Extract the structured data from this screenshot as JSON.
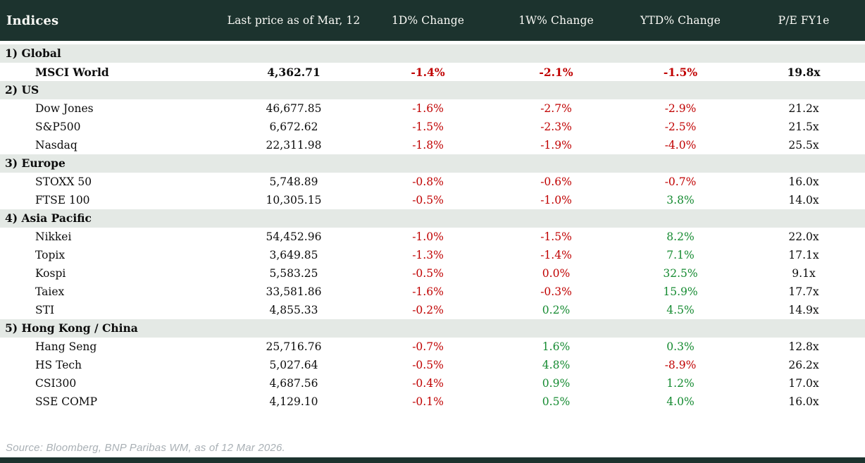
{
  "header": {
    "col_indices": "Indices",
    "col_price": "Last price as of Mar, 12",
    "col_1d": "1D% Change",
    "col_1w": "1W% Change",
    "col_ytd": "YTD% Change",
    "col_pe": "P/E FY1e"
  },
  "colors": {
    "header_bg": "#1c332e",
    "section_bg": "#e4e9e5",
    "negative": "#c00000",
    "positive": "#148a30"
  },
  "sections": [
    {
      "label": "1) Global",
      "rows": [
        {
          "name": "MSCI World",
          "price": "4,362.71",
          "d1": "-1.4%",
          "w1": "-2.1%",
          "ytd": "-1.5%",
          "pe": "19.8x",
          "bold": true
        }
      ]
    },
    {
      "label": "2) US",
      "rows": [
        {
          "name": "Dow Jones",
          "price": "46,677.85",
          "d1": "-1.6%",
          "w1": "-2.7%",
          "ytd": "-2.9%",
          "pe": "21.2x"
        },
        {
          "name": "S&P500",
          "price": "6,672.62",
          "d1": "-1.5%",
          "w1": "-2.3%",
          "ytd": "-2.5%",
          "pe": "21.5x"
        },
        {
          "name": "Nasdaq",
          "price": "22,311.98",
          "d1": "-1.8%",
          "w1": "-1.9%",
          "ytd": "-4.0%",
          "pe": "25.5x"
        }
      ]
    },
    {
      "label": "3) Europe",
      "rows": [
        {
          "name": "STOXX 50",
          "price": "5,748.89",
          "d1": "-0.8%",
          "w1": "-0.6%",
          "ytd": "-0.7%",
          "pe": "16.0x"
        },
        {
          "name": "FTSE 100",
          "price": "10,305.15",
          "d1": "-0.5%",
          "w1": "-1.0%",
          "ytd": "3.8%",
          "pe": "14.0x"
        }
      ]
    },
    {
      "label": "4) Asia Pacific",
      "rows": [
        {
          "name": "Nikkei",
          "price": "54,452.96",
          "d1": "-1.0%",
          "w1": "-1.5%",
          "ytd": "8.2%",
          "pe": "22.0x"
        },
        {
          "name": "Topix",
          "price": "3,649.85",
          "d1": "-1.3%",
          "w1": "-1.4%",
          "ytd": "7.1%",
          "pe": "17.1x"
        },
        {
          "name": "Kospi",
          "price": "5,583.25",
          "d1": "-0.5%",
          "w1": "0.0%",
          "ytd": "32.5%",
          "pe": "9.1x"
        },
        {
          "name": "Taiex",
          "price": "33,581.86",
          "d1": "-1.6%",
          "w1": "-0.3%",
          "ytd": "15.9%",
          "pe": "17.7x"
        },
        {
          "name": "STI",
          "price": "4,855.33",
          "d1": "-0.2%",
          "w1": "0.2%",
          "ytd": "4.5%",
          "pe": "14.9x"
        }
      ]
    },
    {
      "label": "5) Hong Kong / China",
      "rows": [
        {
          "name": "Hang Seng",
          "price": "25,716.76",
          "d1": "-0.7%",
          "w1": "1.6%",
          "ytd": "0.3%",
          "pe": "12.8x"
        },
        {
          "name": "HS Tech",
          "price": "5,027.64",
          "d1": "-0.5%",
          "w1": "4.8%",
          "ytd": "-8.9%",
          "pe": "26.2x"
        },
        {
          "name": "CSI300",
          "price": "4,687.56",
          "d1": "-0.4%",
          "w1": "0.9%",
          "ytd": "1.2%",
          "pe": "17.0x"
        },
        {
          "name": "SSE COMP",
          "price": "4,129.10",
          "d1": "-0.1%",
          "w1": "0.5%",
          "ytd": "4.0%",
          "pe": "16.0x"
        }
      ]
    }
  ],
  "footer": {
    "source": "Source: Bloomberg, BNP Paribas WM, as of 12 Mar 2026."
  }
}
